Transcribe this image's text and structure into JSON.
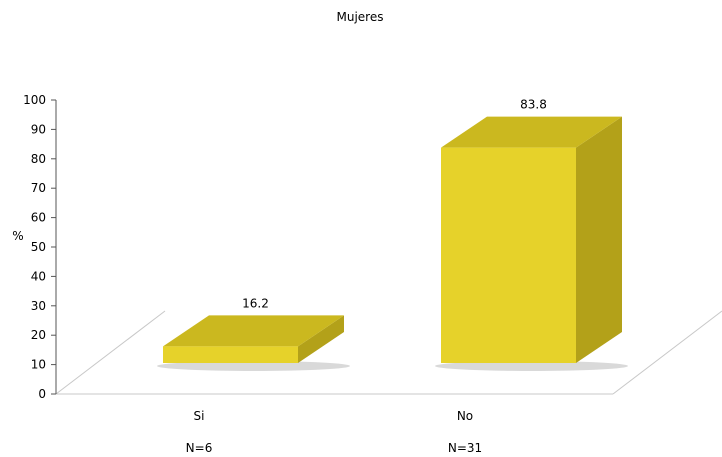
{
  "chart_data": {
    "type": "bar",
    "title": "Mujeres",
    "ylabel": "%",
    "xlabel": "",
    "categories": [
      "Si",
      "No"
    ],
    "sublabels": [
      "N=6",
      "N=31"
    ],
    "values": [
      16.2,
      83.8
    ],
    "data_labels": [
      "16.2",
      "83.8"
    ],
    "yticks": [
      "0",
      "10",
      "20",
      "30",
      "40",
      "50",
      "60",
      "70",
      "80",
      "90",
      "100"
    ],
    "ylim": [
      0,
      100
    ],
    "grid": false,
    "legend": "none",
    "style": "3d",
    "colors": {
      "bar_front": "#e6d22a",
      "bar_side": "#b3a119",
      "bar_top": "#cbb81f",
      "shadow": "#bfbfbf",
      "axis": "#555555",
      "floor": "#c8c8c8"
    }
  }
}
